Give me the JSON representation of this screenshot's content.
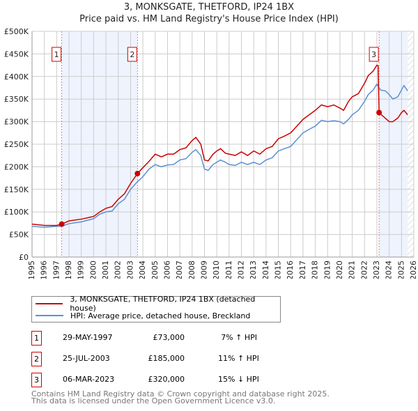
{
  "title": "3, MONKSGATE, THETFORD, IP24 1BX",
  "subtitle": "Price paid vs. HM Land Registry's House Price Index (HPI)",
  "colors": {
    "property": "#cc0000",
    "hpi": "#5b8fd0",
    "shade": "#eef3fd",
    "grid": "#cccccc"
  },
  "chart_data": {
    "type": "line",
    "title": "3, MONKSGATE, THETFORD, IP24 1BX — Price paid vs. HM Land Registry's House Price Index (HPI)",
    "xlim": [
      1995,
      2026
    ],
    "ylim": [
      0,
      500000
    ],
    "yticks": [
      0,
      50000,
      100000,
      150000,
      200000,
      250000,
      300000,
      350000,
      400000,
      450000,
      500000
    ],
    "ytick_labels": [
      "£0",
      "£50K",
      "£100K",
      "£150K",
      "£200K",
      "£250K",
      "£300K",
      "£350K",
      "£400K",
      "£450K",
      "£500K"
    ],
    "xticks": [
      "1995",
      "1996",
      "1997",
      "1998",
      "1999",
      "2000",
      "2001",
      "2002",
      "2003",
      "2004",
      "2005",
      "2006",
      "2007",
      "2008",
      "2009",
      "2010",
      "2011",
      "2012",
      "2013",
      "2014",
      "2015",
      "2016",
      "2017",
      "2018",
      "2019",
      "2020",
      "2021",
      "2022",
      "2023",
      "2024",
      "2025",
      "2026"
    ],
    "series": [
      {
        "name": "3, MONKSGATE, THETFORD, IP24 1BX (detached house)",
        "color": "#cc0000",
        "x": [
          1995,
          1996,
          1997,
          1997.4,
          1998,
          1999,
          2000,
          2000.5,
          2001,
          2001.5,
          2002,
          2002.5,
          2003,
          2003.56,
          2004,
          2004.5,
          2005,
          2005.5,
          2006,
          2006.5,
          2007,
          2007.5,
          2008,
          2008.3,
          2008.7,
          2009,
          2009.3,
          2009.7,
          2010,
          2010.3,
          2010.7,
          2011,
          2011.5,
          2012,
          2012.5,
          2013,
          2013.5,
          2014,
          2014.5,
          2015,
          2015.5,
          2016,
          2016.5,
          2017,
          2017.5,
          2018,
          2018.5,
          2019,
          2019.5,
          2020,
          2020.3,
          2020.7,
          2021,
          2021.5,
          2022,
          2022.3,
          2022.7,
          2023,
          2023.1,
          2023.18,
          2023.5,
          2024,
          2024.3,
          2024.7,
          2025,
          2025.2,
          2025.5
        ],
        "y": [
          73,
          70,
          70,
          73,
          80,
          84,
          90,
          100,
          108,
          112,
          128,
          140,
          163,
          185,
          198,
          212,
          228,
          222,
          228,
          228,
          238,
          242,
          258,
          265,
          250,
          215,
          213,
          228,
          235,
          240,
          230,
          228,
          225,
          233,
          225,
          235,
          228,
          240,
          245,
          262,
          268,
          275,
          290,
          305,
          315,
          325,
          337,
          333,
          337,
          330,
          325,
          345,
          355,
          362,
          385,
          402,
          412,
          425,
          424,
          320,
          312,
          300,
          300,
          308,
          320,
          325,
          315
        ]
      },
      {
        "name": "HPI: Average price, detached house, Breckland",
        "color": "#5b8fd0",
        "x": [
          1995,
          1996,
          1997,
          1997.4,
          1998,
          1999,
          2000,
          2000.5,
          2001,
          2001.5,
          2002,
          2002.5,
          2003,
          2003.56,
          2004,
          2004.5,
          2005,
          2005.5,
          2006,
          2006.5,
          2007,
          2007.5,
          2008,
          2008.3,
          2008.7,
          2009,
          2009.3,
          2009.7,
          2010,
          2010.3,
          2010.7,
          2011,
          2011.5,
          2012,
          2012.5,
          2013,
          2013.5,
          2014,
          2014.5,
          2015,
          2015.5,
          2016,
          2016.5,
          2017,
          2017.5,
          2018,
          2018.5,
          2019,
          2019.5,
          2020,
          2020.3,
          2020.7,
          2021,
          2021.5,
          2022,
          2022.3,
          2022.7,
          2023,
          2023.3,
          2023.7,
          2024,
          2024.3,
          2024.7,
          2025,
          2025.2,
          2025.5
        ],
        "y": [
          68,
          66,
          68,
          68,
          74,
          78,
          85,
          95,
          100,
          102,
          118,
          128,
          150,
          167,
          178,
          195,
          205,
          200,
          204,
          205,
          215,
          218,
          232,
          238,
          225,
          195,
          192,
          205,
          210,
          215,
          210,
          205,
          203,
          210,
          205,
          210,
          205,
          215,
          220,
          235,
          240,
          245,
          260,
          275,
          283,
          290,
          303,
          300,
          302,
          300,
          295,
          305,
          315,
          325,
          345,
          360,
          370,
          383,
          370,
          368,
          360,
          350,
          355,
          370,
          380,
          368
        ]
      }
    ],
    "y_units": "thousands GBP",
    "sales": [
      {
        "label": "1",
        "x": 1997.41,
        "price": 73000
      },
      {
        "label": "2",
        "x": 2003.56,
        "price": 185000
      },
      {
        "label": "3",
        "x": 2023.18,
        "price": 320000
      }
    ],
    "shaded_ranges": [
      [
        1997.41,
        2003.56
      ],
      [
        2023.18,
        2025.5
      ]
    ],
    "hatched_from": 2025.5
  },
  "legend": {
    "property": "3, MONKSGATE, THETFORD, IP24 1BX (detached house)",
    "hpi": "HPI: Average price, detached house, Breckland"
  },
  "transactions": [
    {
      "num": "1",
      "date": "29-MAY-1997",
      "price": "£73,000",
      "hpi": "7% ↑ HPI"
    },
    {
      "num": "2",
      "date": "25-JUL-2003",
      "price": "£185,000",
      "hpi": "11% ↑ HPI"
    },
    {
      "num": "3",
      "date": "06-MAR-2023",
      "price": "£320,000",
      "hpi": "15% ↓ HPI"
    }
  ],
  "footer": [
    "Contains HM Land Registry data © Crown copyright and database right 2025.",
    "This data is licensed under the Open Government Licence v3.0."
  ]
}
